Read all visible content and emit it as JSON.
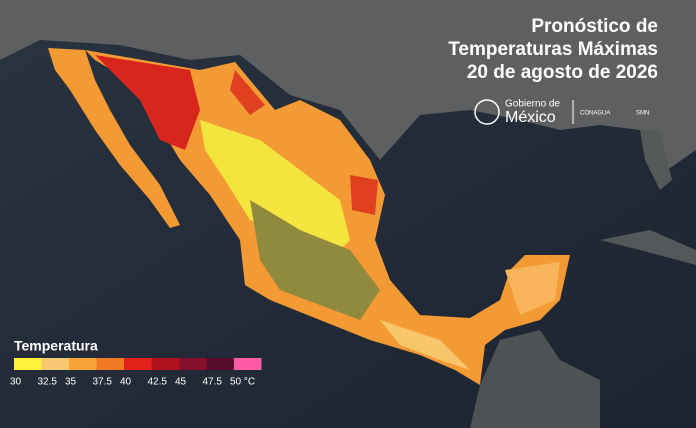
{
  "header": {
    "title_lines": [
      "Pronóstico de",
      "Temperaturas Máximas",
      "20 de agosto de 2026"
    ]
  },
  "logo": {
    "line1": "Gobierno de",
    "line2": "México",
    "agency": "CONAGUA",
    "service": "SMN"
  },
  "legend": {
    "title": "Temperatura",
    "labels": [
      "30",
      "32.5",
      "35",
      "37.5",
      "40",
      "42.5",
      "45",
      "47.5",
      "50 °C"
    ],
    "colors": [
      "#fff23a",
      "#f9c872",
      "#f6a43a",
      "#ef7a22",
      "#e3221c",
      "#b3121c",
      "#84102c",
      "#560c2a",
      "#ff5aa8"
    ]
  }
}
